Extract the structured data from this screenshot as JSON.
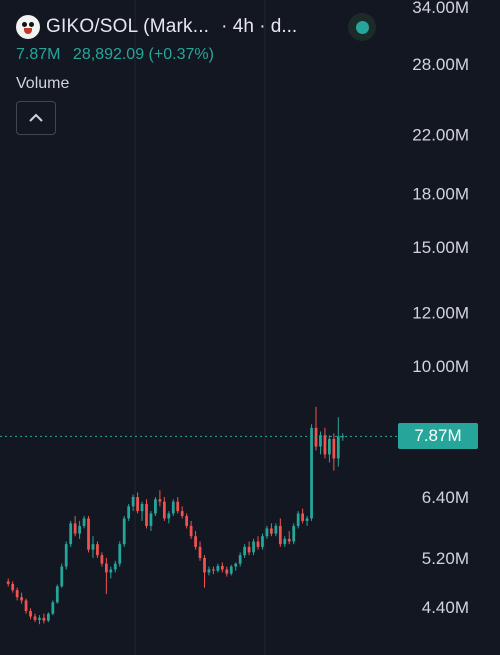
{
  "legend": {
    "symbol": "GIKO/SOL (Mark...",
    "interval": "· 4h · d...",
    "last_value": "7.87M",
    "change": "28,892.09 (+0.37%)",
    "volume_label": "Volume",
    "logo_icon": "giko-face-icon",
    "collapse_icon": "chevron-up-icon",
    "status_icon": "market-open-dot-icon"
  },
  "colors": {
    "background": "#131722",
    "up": "#26a69a",
    "down": "#ef5350",
    "grid": "#232632",
    "axis_text": "#d1d4dc"
  },
  "price_tag": "7.87M",
  "chart_data": {
    "type": "candlestick",
    "title": "",
    "yaxis": {
      "scale": "log",
      "ticks": [
        4.4,
        5.2,
        6.4,
        7.87,
        10,
        12,
        15,
        18,
        22,
        28,
        34
      ],
      "tick_labels": [
        "4.40M",
        "5.20M",
        "6.40M",
        "7.87M",
        "10.00M",
        "12.00M",
        "15.00M",
        "18.00M",
        "22.00M",
        "28.00M",
        "34.00M"
      ],
      "position": "right"
    },
    "last_price": 7.87,
    "last_price_label": "7.87M",
    "grid": true,
    "candles_ohlc_millions": [
      [
        4.8,
        4.85,
        4.72,
        4.76
      ],
      [
        4.76,
        4.8,
        4.62,
        4.66
      ],
      [
        4.66,
        4.7,
        4.5,
        4.55
      ],
      [
        4.55,
        4.62,
        4.45,
        4.5
      ],
      [
        4.5,
        4.53,
        4.3,
        4.34
      ],
      [
        4.34,
        4.38,
        4.22,
        4.26
      ],
      [
        4.26,
        4.3,
        4.18,
        4.21
      ],
      [
        4.21,
        4.28,
        4.15,
        4.24
      ],
      [
        4.24,
        4.3,
        4.16,
        4.2
      ],
      [
        4.2,
        4.32,
        4.18,
        4.3
      ],
      [
        4.3,
        4.5,
        4.28,
        4.47
      ],
      [
        4.47,
        4.75,
        4.45,
        4.72
      ],
      [
        4.72,
        5.1,
        4.7,
        5.05
      ],
      [
        5.05,
        5.5,
        5.0,
        5.45
      ],
      [
        5.45,
        5.9,
        5.4,
        5.85
      ],
      [
        5.85,
        6.0,
        5.6,
        5.65
      ],
      [
        5.65,
        5.9,
        5.55,
        5.8
      ],
      [
        5.8,
        6.0,
        5.75,
        5.95
      ],
      [
        5.95,
        6.0,
        5.3,
        5.35
      ],
      [
        5.35,
        5.6,
        5.2,
        5.45
      ],
      [
        5.45,
        5.5,
        5.2,
        5.25
      ],
      [
        5.25,
        5.3,
        5.05,
        5.1
      ],
      [
        5.1,
        5.2,
        4.6,
        4.95
      ],
      [
        4.95,
        5.05,
        4.85,
        5.0
      ],
      [
        5.0,
        5.15,
        4.95,
        5.1
      ],
      [
        5.1,
        5.5,
        5.05,
        5.45
      ],
      [
        5.45,
        6.0,
        5.4,
        5.95
      ],
      [
        5.95,
        6.25,
        5.9,
        6.2
      ],
      [
        6.2,
        6.45,
        6.1,
        6.4
      ],
      [
        6.4,
        6.5,
        6.05,
        6.1
      ],
      [
        6.1,
        6.3,
        5.9,
        6.25
      ],
      [
        6.25,
        6.35,
        5.75,
        5.8
      ],
      [
        5.8,
        6.1,
        5.7,
        6.05
      ],
      [
        6.05,
        6.4,
        6.0,
        6.35
      ],
      [
        6.35,
        6.55,
        6.2,
        6.3
      ],
      [
        6.3,
        6.4,
        5.9,
        5.95
      ],
      [
        5.95,
        6.1,
        5.85,
        6.05
      ],
      [
        6.05,
        6.35,
        6.0,
        6.3
      ],
      [
        6.3,
        6.4,
        6.05,
        6.1
      ],
      [
        6.1,
        6.2,
        5.95,
        6.0
      ],
      [
        6.0,
        6.05,
        5.75,
        5.8
      ],
      [
        5.8,
        5.9,
        5.55,
        5.6
      ],
      [
        5.6,
        5.7,
        5.35,
        5.4
      ],
      [
        5.4,
        5.5,
        5.15,
        5.2
      ],
      [
        5.2,
        5.25,
        4.7,
        4.95
      ],
      [
        4.95,
        5.05,
        4.9,
        5.0
      ],
      [
        5.0,
        5.05,
        4.92,
        4.98
      ],
      [
        4.98,
        5.1,
        4.95,
        5.06
      ],
      [
        5.06,
        5.12,
        4.95,
        5.0
      ],
      [
        5.0,
        5.05,
        4.88,
        4.93
      ],
      [
        4.93,
        5.08,
        4.9,
        5.05
      ],
      [
        5.05,
        5.12,
        4.98,
        5.1
      ],
      [
        5.1,
        5.3,
        5.05,
        5.25
      ],
      [
        5.25,
        5.45,
        5.2,
        5.4
      ],
      [
        5.4,
        5.5,
        5.25,
        5.3
      ],
      [
        5.3,
        5.55,
        5.25,
        5.5
      ],
      [
        5.5,
        5.6,
        5.35,
        5.4
      ],
      [
        5.4,
        5.65,
        5.35,
        5.6
      ],
      [
        5.6,
        5.8,
        5.55,
        5.75
      ],
      [
        5.75,
        5.85,
        5.6,
        5.65
      ],
      [
        5.65,
        5.85,
        5.6,
        5.8
      ],
      [
        5.8,
        5.95,
        5.4,
        5.45
      ],
      [
        5.45,
        5.6,
        5.4,
        5.55
      ],
      [
        5.55,
        5.7,
        5.45,
        5.5
      ],
      [
        5.5,
        5.85,
        5.45,
        5.8
      ],
      [
        5.8,
        6.1,
        5.75,
        6.05
      ],
      [
        6.05,
        6.15,
        5.85,
        5.9
      ],
      [
        5.9,
        6.0,
        5.8,
        5.95
      ],
      [
        5.95,
        8.2,
        5.9,
        8.1
      ],
      [
        8.1,
        8.7,
        7.5,
        7.6
      ],
      [
        7.6,
        8.0,
        7.4,
        7.9
      ],
      [
        7.9,
        8.1,
        7.3,
        7.4
      ],
      [
        7.4,
        7.9,
        7.2,
        7.8
      ],
      [
        7.8,
        7.95,
        7.0,
        7.3
      ],
      [
        7.3,
        8.4,
        7.1,
        7.87
      ],
      [
        7.87,
        7.95,
        7.75,
        7.87
      ]
    ]
  }
}
